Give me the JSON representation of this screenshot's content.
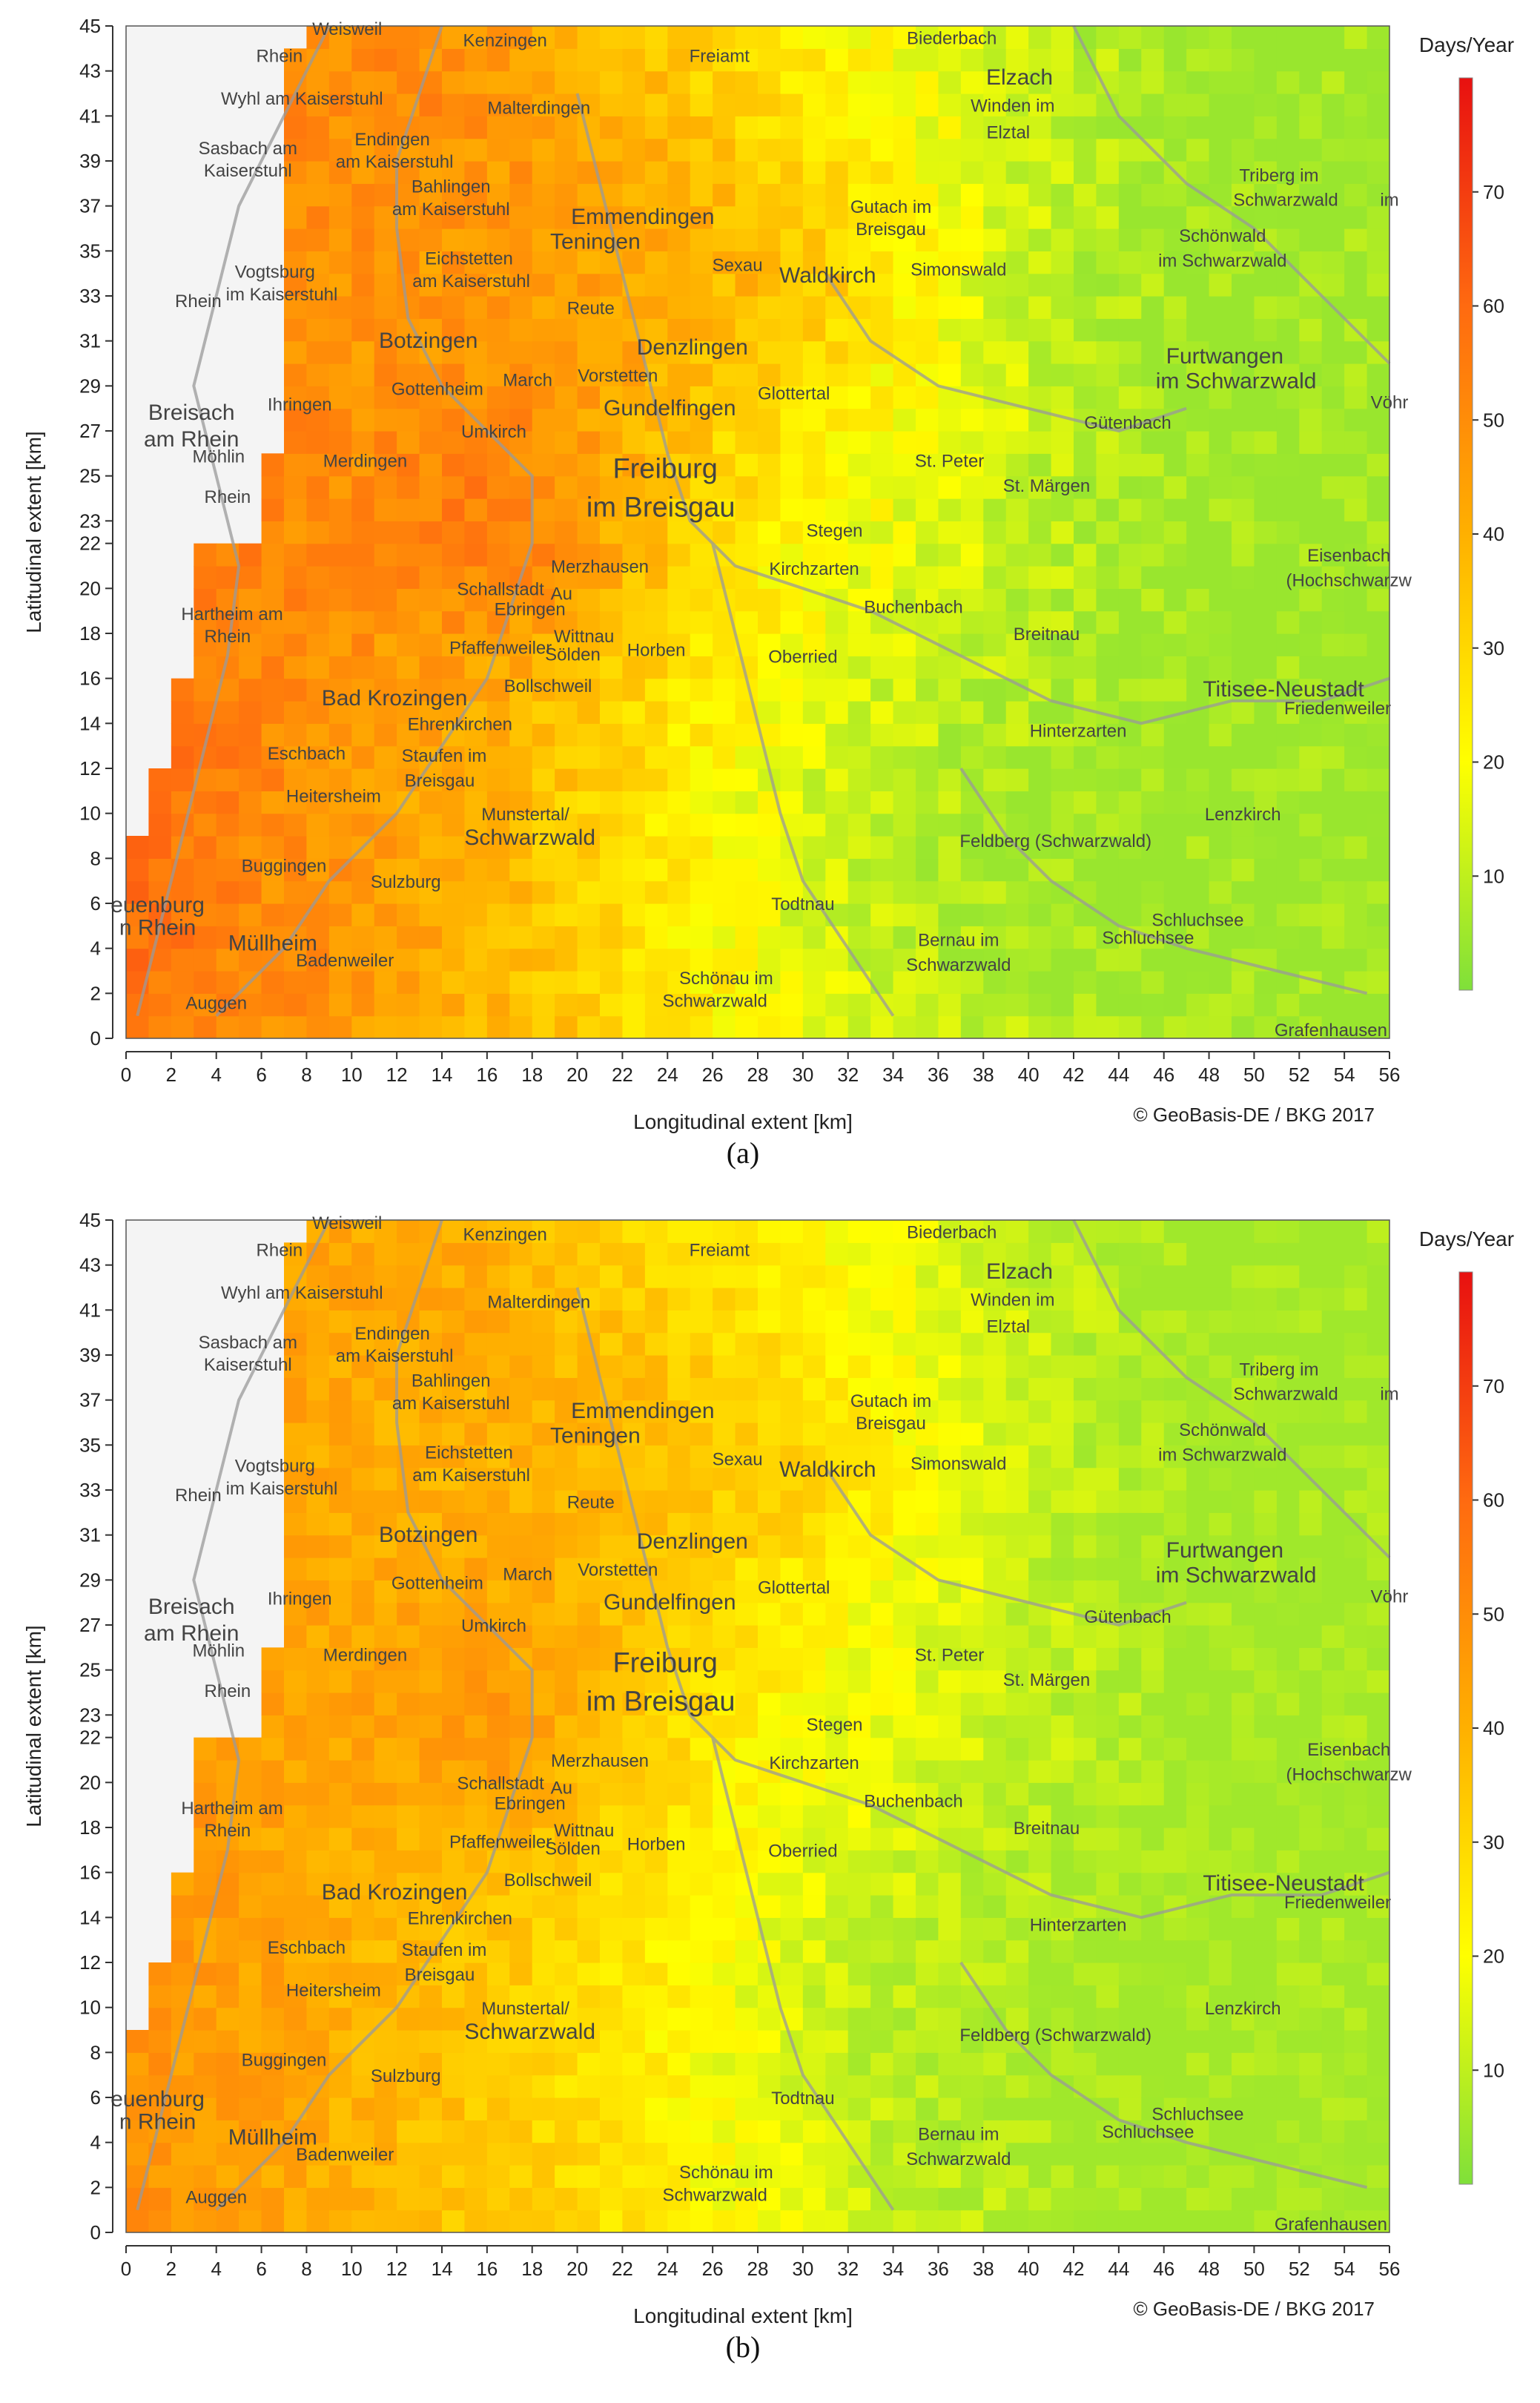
{
  "maps": [
    {
      "id": "a",
      "panel_label": "(a)",
      "xlabel": "Longitudinal extent [km]",
      "ylabel": "Latitudinal extent [km]",
      "x_ticks": [
        0,
        2,
        4,
        6,
        8,
        10,
        12,
        14,
        16,
        18,
        20,
        22,
        24,
        26,
        28,
        30,
        32,
        34,
        36,
        38,
        40,
        42,
        44,
        46,
        48,
        50,
        52,
        54,
        56
      ],
      "y_ticks": [
        0,
        2,
        4,
        6,
        8,
        10,
        12,
        14,
        16,
        18,
        20,
        22,
        23,
        25,
        27,
        29,
        31,
        33,
        35,
        37,
        39,
        41,
        43,
        45
      ],
      "xlim": [
        0,
        56
      ],
      "ylim": [
        0,
        45
      ],
      "copyright": "© GeoBasis-DE / BKG 2017",
      "legend": {
        "title": "Days/Year",
        "ticks": [
          10,
          20,
          30,
          40,
          50,
          60,
          70
        ],
        "range": [
          0,
          80
        ],
        "colors": [
          "#7fe03a",
          "#ffff00",
          "#ffb000",
          "#ff6a10",
          "#e81010"
        ]
      },
      "field_scale": 1.0
    },
    {
      "id": "b",
      "panel_label": "(b)",
      "xlabel": "Longitudinal extent [km]",
      "ylabel": "Latitudinal extent [km]",
      "x_ticks": [
        0,
        2,
        4,
        6,
        8,
        10,
        12,
        14,
        16,
        18,
        20,
        22,
        24,
        26,
        28,
        30,
        32,
        34,
        36,
        38,
        40,
        42,
        44,
        46,
        48,
        50,
        52,
        54,
        56
      ],
      "y_ticks": [
        0,
        2,
        4,
        6,
        8,
        10,
        12,
        14,
        16,
        18,
        20,
        22,
        23,
        25,
        27,
        29,
        31,
        33,
        35,
        37,
        39,
        41,
        43,
        45
      ],
      "xlim": [
        0,
        56
      ],
      "ylim": [
        0,
        45
      ],
      "copyright": "© GeoBasis-DE / BKG 2017",
      "legend": {
        "title": "Days/Year",
        "ticks": [
          10,
          20,
          30,
          40,
          50,
          60,
          70
        ],
        "range": [
          0,
          80
        ],
        "colors": [
          "#7fe03a",
          "#ffff00",
          "#ffb000",
          "#ff6a10",
          "#e81010"
        ]
      },
      "field_scale": 0.82
    }
  ],
  "places": [
    {
      "name": "Weisweil",
      "x": 9.8,
      "y": 44.6,
      "size": "small"
    },
    {
      "name": "Kenzingen",
      "x": 16.8,
      "y": 44.1,
      "size": "small"
    },
    {
      "name": "Freiamt",
      "x": 26.3,
      "y": 43.4,
      "size": "small"
    },
    {
      "name": "Biederbach",
      "x": 36.6,
      "y": 44.2,
      "size": "small"
    },
    {
      "name": "Wyhl am Kaiserstuhl",
      "x": 7.8,
      "y": 41.5,
      "size": "small"
    },
    {
      "name": "Malterdingen",
      "x": 18.3,
      "y": 41.1,
      "size": "small"
    },
    {
      "name": "Elzach",
      "x": 39.6,
      "y": 42.4,
      "size": "mid"
    },
    {
      "name": "Winden im",
      "x": 39.3,
      "y": 41.2,
      "size": "small"
    },
    {
      "name": "Elztal",
      "x": 39.1,
      "y": 40.0,
      "size": "small"
    },
    {
      "name": "Sasbach am",
      "x": 5.4,
      "y": 39.3,
      "size": "small"
    },
    {
      "name": "Kaiserstuhl",
      "x": 5.4,
      "y": 38.3,
      "size": "small"
    },
    {
      "name": "Endingen",
      "x": 11.8,
      "y": 39.7,
      "size": "small"
    },
    {
      "name": "am Kaiserstuhl",
      "x": 11.9,
      "y": 38.7,
      "size": "small"
    },
    {
      "name": "Bahlingen",
      "x": 14.4,
      "y": 37.6,
      "size": "small"
    },
    {
      "name": "am Kaiserstuhl",
      "x": 14.4,
      "y": 36.6,
      "size": "small"
    },
    {
      "name": "Emmendingen",
      "x": 22.9,
      "y": 36.2,
      "size": "big"
    },
    {
      "name": "Teningen",
      "x": 20.8,
      "y": 35.1,
      "size": "mid"
    },
    {
      "name": "Gutach im",
      "x": 33.9,
      "y": 36.7,
      "size": "small"
    },
    {
      "name": "Breisgau",
      "x": 33.9,
      "y": 35.7,
      "size": "small"
    },
    {
      "name": "Triberg im",
      "x": 51.1,
      "y": 38.1,
      "size": "small"
    },
    {
      "name": "Schwarzwald",
      "x": 51.4,
      "y": 37.0,
      "size": "small"
    },
    {
      "name": "Vogtsburg",
      "x": 6.6,
      "y": 33.8,
      "size": "small"
    },
    {
      "name": "im Kaiserstuhl",
      "x": 6.9,
      "y": 32.8,
      "size": "small"
    },
    {
      "name": "Eichstetten",
      "x": 15.2,
      "y": 34.4,
      "size": "small"
    },
    {
      "name": "am Kaiserstuhl",
      "x": 15.3,
      "y": 33.4,
      "size": "small"
    },
    {
      "name": "Sexau",
      "x": 27.1,
      "y": 34.1,
      "size": "small"
    },
    {
      "name": "Waldkirch",
      "x": 31.1,
      "y": 33.6,
      "size": "mid"
    },
    {
      "name": "Simonswald",
      "x": 36.9,
      "y": 33.9,
      "size": "small"
    },
    {
      "name": "Schönwald",
      "x": 48.6,
      "y": 35.4,
      "size": "small"
    },
    {
      "name": "im Schwarzwald",
      "x": 48.6,
      "y": 34.3,
      "size": "small"
    },
    {
      "name": "Reute",
      "x": 20.6,
      "y": 32.2,
      "size": "small"
    },
    {
      "name": "Denzlingen",
      "x": 25.1,
      "y": 30.4,
      "size": "mid"
    },
    {
      "name": "Botzingen",
      "x": 13.4,
      "y": 30.7,
      "size": "mid"
    },
    {
      "name": "Furtwangen",
      "x": 48.7,
      "y": 30.0,
      "size": "mid"
    },
    {
      "name": "im Schwarzwald",
      "x": 49.2,
      "y": 28.9,
      "size": "mid"
    },
    {
      "name": "March",
      "x": 17.8,
      "y": 29.0,
      "size": "small"
    },
    {
      "name": "Vorstetten",
      "x": 21.8,
      "y": 29.2,
      "size": "small"
    },
    {
      "name": "Gottenheim",
      "x": 13.8,
      "y": 28.6,
      "size": "small"
    },
    {
      "name": "Glottertal",
      "x": 29.6,
      "y": 28.4,
      "size": "small"
    },
    {
      "name": "Gundelfingen",
      "x": 24.1,
      "y": 27.7,
      "size": "mid"
    },
    {
      "name": "Breisach",
      "x": 2.9,
      "y": 27.5,
      "size": "mid"
    },
    {
      "name": "am Rhein",
      "x": 2.9,
      "y": 26.3,
      "size": "mid"
    },
    {
      "name": "Ihringen",
      "x": 7.7,
      "y": 27.9,
      "size": "small"
    },
    {
      "name": "Gütenbach",
      "x": 44.4,
      "y": 27.1,
      "size": "small"
    },
    {
      "name": "Umkirch",
      "x": 16.3,
      "y": 26.7,
      "size": "small"
    },
    {
      "name": "Merdingen",
      "x": 10.6,
      "y": 25.4,
      "size": "small"
    },
    {
      "name": "Freiburg",
      "x": 23.9,
      "y": 24.9,
      "size": "huge"
    },
    {
      "name": "im Breisgau",
      "x": 23.7,
      "y": 23.2,
      "size": "huge"
    },
    {
      "name": "St. Peter",
      "x": 36.5,
      "y": 25.4,
      "size": "small"
    },
    {
      "name": "St. Märgen",
      "x": 40.8,
      "y": 24.3,
      "size": "small"
    },
    {
      "name": "Stegen",
      "x": 31.4,
      "y": 22.3,
      "size": "small"
    },
    {
      "name": "Eisenbach",
      "x": 54.2,
      "y": 21.2,
      "size": "small"
    },
    {
      "name": "(Hochschwarzw",
      "x": 54.2,
      "y": 20.1,
      "size": "small"
    },
    {
      "name": "Merzhausen",
      "x": 21.0,
      "y": 20.7,
      "size": "small"
    },
    {
      "name": "Kirchzarten",
      "x": 30.5,
      "y": 20.6,
      "size": "small"
    },
    {
      "name": "Schallstadt",
      "x": 16.6,
      "y": 19.7,
      "size": "small"
    },
    {
      "name": "Ebringen",
      "x": 17.9,
      "y": 18.8,
      "size": "small"
    },
    {
      "name": "Au",
      "x": 19.3,
      "y": 19.5,
      "size": "small"
    },
    {
      "name": "Buchenbach",
      "x": 34.9,
      "y": 18.9,
      "size": "small"
    },
    {
      "name": "Hartheim am",
      "x": 4.7,
      "y": 18.6,
      "size": "small"
    },
    {
      "name": "Rhein",
      "x": 4.5,
      "y": 17.6,
      "size": "small"
    },
    {
      "name": "Breitnau",
      "x": 40.8,
      "y": 17.7,
      "size": "small"
    },
    {
      "name": "Wittnau",
      "x": 20.3,
      "y": 17.6,
      "size": "small"
    },
    {
      "name": "Pfaffenweiler",
      "x": 16.6,
      "y": 17.1,
      "size": "small"
    },
    {
      "name": "Sölden",
      "x": 19.8,
      "y": 16.8,
      "size": "small"
    },
    {
      "name": "Horben",
      "x": 23.5,
      "y": 17.0,
      "size": "small"
    },
    {
      "name": "Oberried",
      "x": 30.0,
      "y": 16.7,
      "size": "small"
    },
    {
      "name": "Bollschweil",
      "x": 18.7,
      "y": 15.4,
      "size": "small"
    },
    {
      "name": "Titisee-Neustadt",
      "x": 51.3,
      "y": 15.2,
      "size": "mid"
    },
    {
      "name": "Bad Krozingen",
      "x": 11.9,
      "y": 14.8,
      "size": "mid"
    },
    {
      "name": "Friedenweiler",
      "x": 53.7,
      "y": 14.4,
      "size": "small"
    },
    {
      "name": "Ehrenkirchen",
      "x": 14.8,
      "y": 13.7,
      "size": "small"
    },
    {
      "name": "Hinterzarten",
      "x": 42.2,
      "y": 13.4,
      "size": "small"
    },
    {
      "name": "Eschbach",
      "x": 8.0,
      "y": 12.4,
      "size": "small"
    },
    {
      "name": "Staufen im",
      "x": 14.1,
      "y": 12.3,
      "size": "small"
    },
    {
      "name": "Breisgau",
      "x": 13.9,
      "y": 11.2,
      "size": "small"
    },
    {
      "name": "Heitersheim",
      "x": 9.2,
      "y": 10.5,
      "size": "small"
    },
    {
      "name": "Munstertal/",
      "x": 17.7,
      "y": 9.7,
      "size": "small"
    },
    {
      "name": "Schwarzwald",
      "x": 17.9,
      "y": 8.6,
      "size": "mid"
    },
    {
      "name": "Lenzkirch",
      "x": 49.5,
      "y": 9.7,
      "size": "small"
    },
    {
      "name": "Feldberg (Schwarzwald)",
      "x": 41.2,
      "y": 8.5,
      "size": "small"
    },
    {
      "name": "Buggingen",
      "x": 7.0,
      "y": 7.4,
      "size": "small"
    },
    {
      "name": "Sulzburg",
      "x": 12.4,
      "y": 6.7,
      "size": "small"
    },
    {
      "name": "Todtnau",
      "x": 30.0,
      "y": 5.7,
      "size": "small"
    },
    {
      "name": "Schluchsee",
      "x": 47.5,
      "y": 5.0,
      "size": "small"
    },
    {
      "name": "Schluchsee",
      "x": 45.3,
      "y": 4.2,
      "size": "small"
    },
    {
      "name": "Müllheim",
      "x": 6.5,
      "y": 3.9,
      "size": "mid"
    },
    {
      "name": "Bernau im",
      "x": 36.9,
      "y": 4.1,
      "size": "small"
    },
    {
      "name": "Schwarzwald",
      "x": 36.9,
      "y": 3.0,
      "size": "small"
    },
    {
      "name": "Badenweiler",
      "x": 9.7,
      "y": 3.2,
      "size": "small"
    },
    {
      "name": "Schönau im",
      "x": 26.6,
      "y": 2.4,
      "size": "small"
    },
    {
      "name": "Schwarzwald",
      "x": 26.1,
      "y": 1.4,
      "size": "small"
    },
    {
      "name": "Auggen",
      "x": 4.0,
      "y": 1.3,
      "size": "small"
    },
    {
      "name": "Grafenhausen",
      "x": 53.4,
      "y": 0.1,
      "size": "small"
    },
    {
      "name": "euenburg",
      "x": 1.4,
      "y": 5.6,
      "size": "mid"
    },
    {
      "name": "n Rhein",
      "x": 1.4,
      "y": 4.6,
      "size": "mid"
    },
    {
      "name": "Rhein",
      "x": 6.8,
      "y": 43.4,
      "size": "small"
    },
    {
      "name": "Rhein",
      "x": 3.2,
      "y": 32.5,
      "size": "small"
    },
    {
      "name": "Möhlin",
      "x": 4.1,
      "y": 25.6,
      "size": "small"
    },
    {
      "name": "Rhein",
      "x": 4.5,
      "y": 23.8,
      "size": "small"
    },
    {
      "name": "Vöhr",
      "x": 56.0,
      "y": 28.0,
      "size": "small"
    },
    {
      "name": "im",
      "x": 56.0,
      "y": 37.0,
      "size": "small"
    }
  ]
}
